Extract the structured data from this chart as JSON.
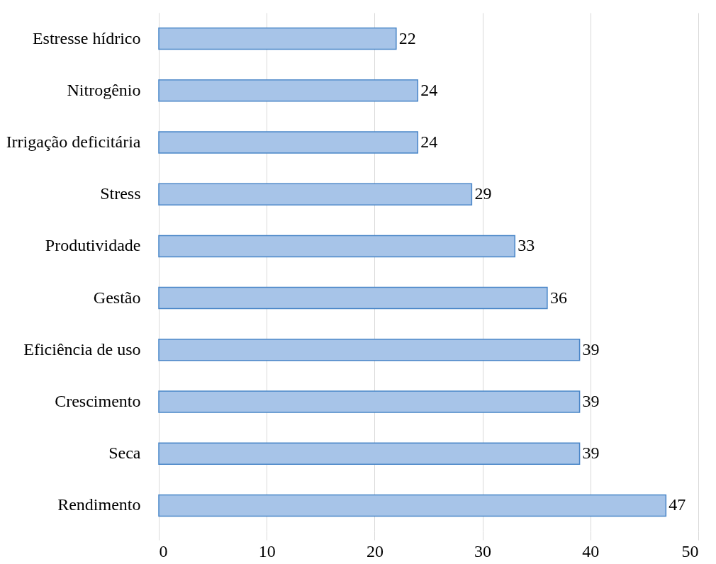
{
  "chart_data": {
    "type": "bar",
    "orientation": "horizontal",
    "categories": [
      "Estresse hídrico",
      "Nitrogênio",
      "Irrigação deficitária",
      "Stress",
      "Produtividade",
      "Gestão",
      "Eficiência de uso",
      "Crescimento",
      "Seca",
      "Rendimento"
    ],
    "values": [
      22,
      24,
      24,
      29,
      33,
      36,
      39,
      39,
      39,
      47
    ],
    "color": "#a7c4e8",
    "xlim": [
      0,
      50
    ],
    "xticks": [
      0,
      10,
      20,
      30,
      40,
      50
    ],
    "grid": "x",
    "data_labels": true
  }
}
